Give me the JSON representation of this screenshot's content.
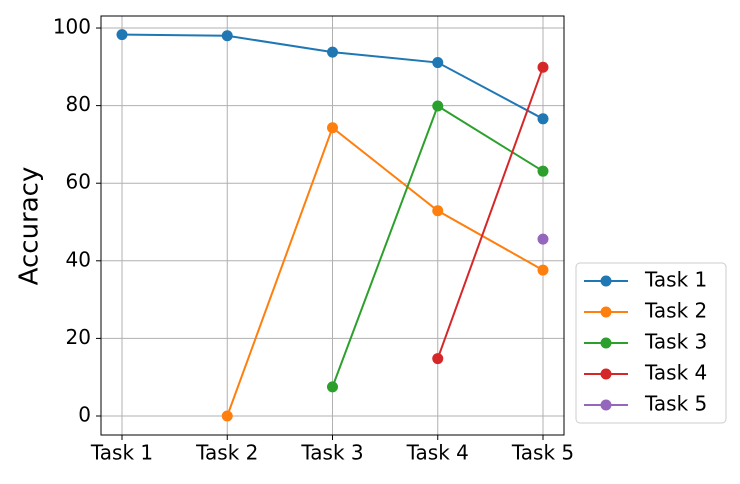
{
  "chart_data": {
    "type": "line",
    "y_label": "Accuracy",
    "categories": [
      "Task 1",
      "Task 2",
      "Task 3",
      "Task 4",
      "Task 5"
    ],
    "series": [
      {
        "name": "Task 1",
        "color": "#1f77b4",
        "values": [
          98.3,
          98.0,
          93.8,
          91.1,
          76.6
        ]
      },
      {
        "name": "Task 2",
        "color": "#ff7f0e",
        "values": [
          null,
          0,
          74.3,
          52.9,
          37.6
        ]
      },
      {
        "name": "Task 3",
        "color": "#2ca02c",
        "values": [
          null,
          null,
          7.5,
          79.9,
          63.1
        ]
      },
      {
        "name": "Task 4",
        "color": "#d62728",
        "values": [
          null,
          null,
          null,
          14.8,
          89.9
        ]
      },
      {
        "name": "Task 5",
        "color": "#9467bd",
        "values": [
          null,
          null,
          null,
          null,
          45.6
        ]
      }
    ],
    "ylim": [
      -4.9,
      103.1
    ],
    "yticks": [
      0,
      20,
      40,
      60,
      80,
      100
    ],
    "grid": true,
    "legend": "outside-lower-right"
  }
}
